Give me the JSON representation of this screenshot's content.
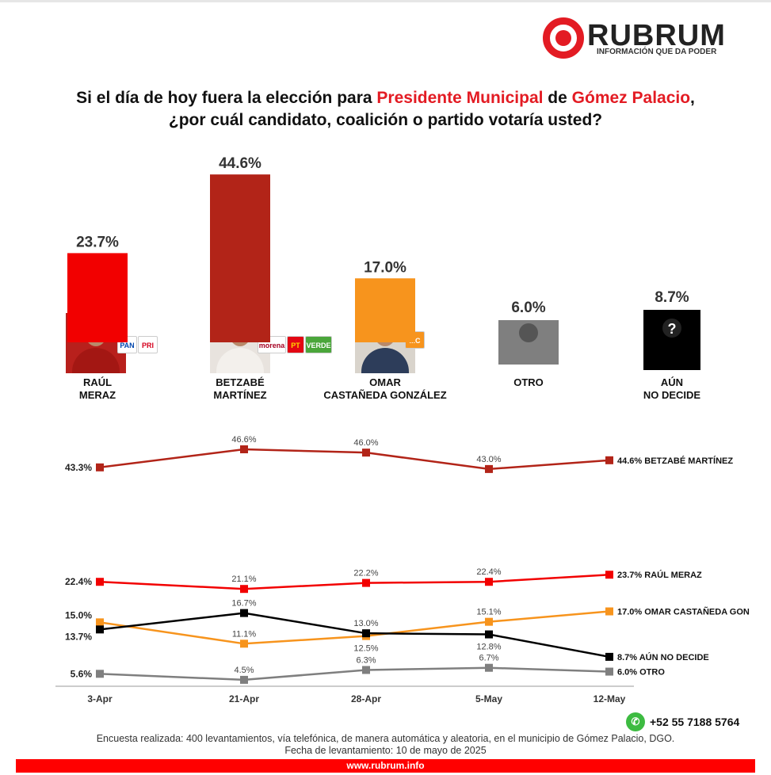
{
  "logo": {
    "name": "RUBRUM",
    "tagline": "INFORMACIÓN QUE DA PODER"
  },
  "title": {
    "line1_a": "Si el día de hoy fuera la elección para ",
    "line1_hl1": "Presidente Municipal",
    "line1_b": " de ",
    "line1_hl2": "Gómez Palacio",
    "line1_c": ",",
    "line2": "¿por cuál candidato, coalición o partido votaría usted?"
  },
  "colors": {
    "accent": "#e31b23",
    "betzabe": "#b22418",
    "raul": "#f20000",
    "omar": "#f7941d",
    "aun": "#000000",
    "otro": "#7f7f7f"
  },
  "chart_data": [
    {
      "type": "bar",
      "categories": [
        "RAÚL MERAZ",
        "BETZABÉ MARTÍNEZ",
        "OMAR CASTAÑEDA GONZÁLEZ",
        "OTRO",
        "AÚN NO DECIDE"
      ],
      "values": [
        23.7,
        44.6,
        17.0,
        6.0,
        8.7
      ],
      "labels": [
        "23.7%",
        "44.6%",
        "17.0%",
        "6.0%",
        "8.7%"
      ],
      "colors": [
        "#f20000",
        "#b22418",
        "#f7941d",
        "#7f7f7f",
        "#000000"
      ],
      "parties": [
        [
          "PAN",
          "PRI"
        ],
        [
          "morena",
          "PT",
          "VERDE"
        ],
        [
          "MC"
        ],
        [],
        []
      ]
    },
    {
      "type": "line",
      "categories": [
        "3-Apr",
        "21-Apr",
        "28-Apr",
        "5-May",
        "12-May"
      ],
      "series": [
        {
          "name": "BETZABÉ MARTÍNEZ",
          "color": "#b22418",
          "values": [
            43.3,
            46.6,
            46.0,
            43.0,
            44.6
          ]
        },
        {
          "name": "RAÚL MERAZ",
          "color": "#f20000",
          "values": [
            22.4,
            21.1,
            22.2,
            22.4,
            23.7
          ]
        },
        {
          "name": "OMAR CASTAÑEDA GON",
          "color": "#f7941d",
          "values": [
            15.0,
            11.1,
            12.5,
            15.1,
            17.0
          ]
        },
        {
          "name": "AÚN NO DECIDE",
          "color": "#000000",
          "values": [
            13.7,
            16.7,
            13.0,
            12.8,
            8.7
          ]
        },
        {
          "name": "OTRO",
          "color": "#7f7f7f",
          "values": [
            5.6,
            4.5,
            6.3,
            6.7,
            6.0
          ]
        }
      ]
    }
  ],
  "footer": {
    "phone": "+52 55 7188 5764",
    "note1": "Encuesta realizada: 400 levantamientos, vía telefónica, de manera automática y aleatoria, en el municipio de Gómez Palacio, DGO.",
    "note2": "Fecha de levantamiento: 10 de mayo de 2025",
    "url": "www.rubrum.info"
  }
}
